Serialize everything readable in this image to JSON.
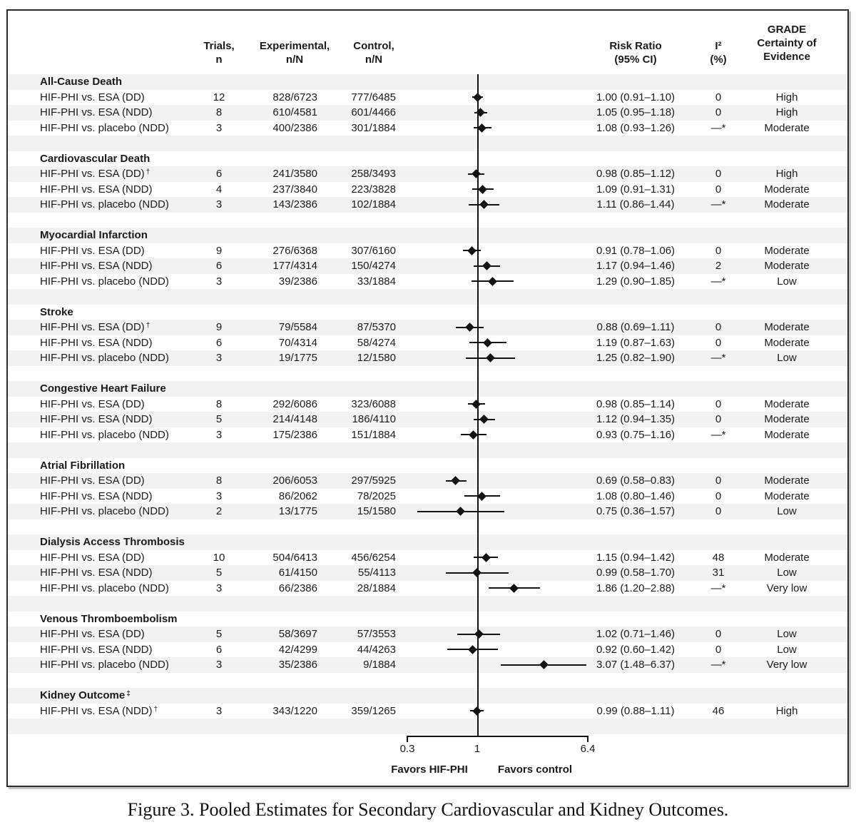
{
  "colors": {
    "stripe": "#f2f2f2",
    "ink": "#1a1a1a",
    "marker": "#121212"
  },
  "columns": {
    "trials_l1": "Trials,",
    "trials_l2": "n",
    "exp_l1": "Experimental,",
    "exp_l2": "n/N",
    "ctrl_l1": "Control,",
    "ctrl_l2": "n/N",
    "rr_l1": "Risk Ratio",
    "rr_l2": "(95% CI)",
    "i2_l1": "I²",
    "i2_l2": "(%)",
    "grade_l1": "GRADE",
    "grade_l2": "Certainty of",
    "grade_l3": "Evidence"
  },
  "axis": {
    "scale": "log",
    "min": 0.3,
    "ref": 1,
    "max": 6.4,
    "ticks": [
      "0.3",
      "1",
      "6.4"
    ],
    "favors_left": "Favors HIF-PHI",
    "favors_right": "Favors control"
  },
  "caption": "Figure 3. Pooled Estimates for Secondary Cardiovascular and Kidney Outcomes.",
  "sections": [
    {
      "title": "All-Cause Death",
      "sup": "",
      "rows": [
        {
          "label": "HIF-PHI vs. ESA (DD)",
          "sup": "",
          "trials": "12",
          "exp": "828/6723",
          "ctrl": "777/6485",
          "rr": "1.00 (0.91–1.10)",
          "est": 1.0,
          "lo": 0.91,
          "hi": 1.1,
          "i2": "0",
          "grade": "High"
        },
        {
          "label": "HIF-PHI vs. ESA (NDD)",
          "sup": "",
          "trials": "8",
          "exp": "610/4581",
          "ctrl": "601/4466",
          "rr": "1.05 (0.95–1.18)",
          "est": 1.05,
          "lo": 0.95,
          "hi": 1.18,
          "i2": "0",
          "grade": "High"
        },
        {
          "label": "HIF-PHI vs. placebo (NDD)",
          "sup": "",
          "trials": "3",
          "exp": "400/2386",
          "ctrl": "301/1884",
          "rr": "1.08 (0.93–1.26)",
          "est": 1.08,
          "lo": 0.93,
          "hi": 1.26,
          "i2": "—*",
          "grade": "Moderate"
        }
      ]
    },
    {
      "title": "Cardiovascular Death",
      "sup": "",
      "rows": [
        {
          "label": "HIF-PHI vs. ESA (DD)",
          "sup": "†",
          "trials": "6",
          "exp": "241/3580",
          "ctrl": "258/3493",
          "rr": "0.98 (0.85–1.12)",
          "est": 0.98,
          "lo": 0.85,
          "hi": 1.12,
          "i2": "0",
          "grade": "High"
        },
        {
          "label": "HIF-PHI vs. ESA (NDD)",
          "sup": "",
          "trials": "4",
          "exp": "237/3840",
          "ctrl": "223/3828",
          "rr": "1.09 (0.91–1.31)",
          "est": 1.09,
          "lo": 0.91,
          "hi": 1.31,
          "i2": "0",
          "grade": "Moderate"
        },
        {
          "label": "HIF-PHI vs. placebo (NDD)",
          "sup": "",
          "trials": "3",
          "exp": "143/2386",
          "ctrl": "102/1884",
          "rr": "1.11 (0.86–1.44)",
          "est": 1.11,
          "lo": 0.86,
          "hi": 1.44,
          "i2": "—*",
          "grade": "Moderate"
        }
      ]
    },
    {
      "title": "Myocardial Infarction",
      "sup": "",
      "rows": [
        {
          "label": "HIF-PHI vs. ESA (DD)",
          "sup": "",
          "trials": "9",
          "exp": "276/6368",
          "ctrl": "307/6160",
          "rr": "0.91 (0.78–1.06)",
          "est": 0.91,
          "lo": 0.78,
          "hi": 1.06,
          "i2": "0",
          "grade": "Moderate"
        },
        {
          "label": "HIF-PHI vs. ESA (NDD)",
          "sup": "",
          "trials": "6",
          "exp": "177/4314",
          "ctrl": "150/4274",
          "rr": "1.17 (0.94–1.46)",
          "est": 1.17,
          "lo": 0.94,
          "hi": 1.46,
          "i2": "2",
          "grade": "Moderate"
        },
        {
          "label": "HIF-PHI vs. placebo (NDD)",
          "sup": "",
          "trials": "3",
          "exp": "39/2386",
          "ctrl": "33/1884",
          "rr": "1.29 (0.90–1.85)",
          "est": 1.29,
          "lo": 0.9,
          "hi": 1.85,
          "i2": "—*",
          "grade": "Low"
        }
      ]
    },
    {
      "title": "Stroke",
      "sup": "",
      "rows": [
        {
          "label": "HIF-PHI vs. ESA (DD)",
          "sup": "†",
          "trials": "9",
          "exp": "79/5584",
          "ctrl": "87/5370",
          "rr": "0.88 (0.69–1.11)",
          "est": 0.88,
          "lo": 0.69,
          "hi": 1.11,
          "i2": "0",
          "grade": "Moderate"
        },
        {
          "label": "HIF-PHI vs. ESA (NDD)",
          "sup": "",
          "trials": "6",
          "exp": "70/4314",
          "ctrl": "58/4274",
          "rr": "1.19 (0.87–1.63)",
          "est": 1.19,
          "lo": 0.87,
          "hi": 1.63,
          "i2": "0",
          "grade": "Moderate"
        },
        {
          "label": "HIF-PHI vs. placebo (NDD)",
          "sup": "",
          "trials": "3",
          "exp": "19/1775",
          "ctrl": "12/1580",
          "rr": "1.25 (0.82–1.90)",
          "est": 1.25,
          "lo": 0.82,
          "hi": 1.9,
          "i2": "—*",
          "grade": "Low"
        }
      ]
    },
    {
      "title": "Congestive Heart Failure",
      "sup": "",
      "rows": [
        {
          "label": "HIF-PHI vs. ESA (DD)",
          "sup": "",
          "trials": "8",
          "exp": "292/6086",
          "ctrl": "323/6088",
          "rr": "0.98 (0.85–1.14)",
          "est": 0.98,
          "lo": 0.85,
          "hi": 1.14,
          "i2": "0",
          "grade": "Moderate"
        },
        {
          "label": "HIF-PHI vs. ESA (NDD)",
          "sup": "",
          "trials": "5",
          "exp": "214/4148",
          "ctrl": "186/4110",
          "rr": "1.12 (0.94–1.35)",
          "est": 1.12,
          "lo": 0.94,
          "hi": 1.35,
          "i2": "0",
          "grade": "Moderate"
        },
        {
          "label": "HIF-PHI vs. placebo (NDD)",
          "sup": "",
          "trials": "3",
          "exp": "175/2386",
          "ctrl": "151/1884",
          "rr": "0.93 (0.75–1.16)",
          "est": 0.93,
          "lo": 0.75,
          "hi": 1.16,
          "i2": "—*",
          "grade": "Moderate"
        }
      ]
    },
    {
      "title": "Atrial Fibrillation",
      "sup": "",
      "rows": [
        {
          "label": "HIF-PHI vs. ESA (DD)",
          "sup": "",
          "trials": "8",
          "exp": "206/6053",
          "ctrl": "297/5925",
          "rr": "0.69 (0.58–0.83)",
          "est": 0.69,
          "lo": 0.58,
          "hi": 0.83,
          "i2": "0",
          "grade": "Moderate"
        },
        {
          "label": "HIF-PHI vs. ESA (NDD)",
          "sup": "",
          "trials": "3",
          "exp": "86/2062",
          "ctrl": "78/2025",
          "rr": "1.08 (0.80–1.46)",
          "est": 1.08,
          "lo": 0.8,
          "hi": 1.46,
          "i2": "0",
          "grade": "Moderate"
        },
        {
          "label": "HIF-PHI vs. placebo (NDD)",
          "sup": "",
          "trials": "2",
          "exp": "13/1775",
          "ctrl": "15/1580",
          "rr": "0.75 (0.36–1.57)",
          "est": 0.75,
          "lo": 0.36,
          "hi": 1.57,
          "i2": "0",
          "grade": "Low"
        }
      ]
    },
    {
      "title": "Dialysis Access Thrombosis",
      "sup": "",
      "rows": [
        {
          "label": "HIF-PHI vs. ESA (DD)",
          "sup": "",
          "trials": "10",
          "exp": "504/6413",
          "ctrl": "456/6254",
          "rr": "1.15 (0.94–1.42)",
          "est": 1.15,
          "lo": 0.94,
          "hi": 1.42,
          "i2": "48",
          "grade": "Moderate"
        },
        {
          "label": "HIF-PHI vs. ESA (NDD)",
          "sup": "",
          "trials": "5",
          "exp": "61/4150",
          "ctrl": "55/4113",
          "rr": "0.99 (0.58–1.70)",
          "est": 0.99,
          "lo": 0.58,
          "hi": 1.7,
          "i2": "31",
          "grade": "Low"
        },
        {
          "label": "HIF-PHI vs. placebo (NDD)",
          "sup": "",
          "trials": "3",
          "exp": "66/2386",
          "ctrl": "28/1884",
          "rr": "1.86 (1.20–2.88)",
          "est": 1.86,
          "lo": 1.2,
          "hi": 2.88,
          "i2": "—*",
          "grade": "Very low"
        }
      ]
    },
    {
      "title": "Venous Thromboembolism",
      "sup": "",
      "rows": [
        {
          "label": "HIF-PHI vs. ESA (DD)",
          "sup": "",
          "trials": "5",
          "exp": "58/3697",
          "ctrl": "57/3553",
          "rr": "1.02 (0.71–1.46)",
          "est": 1.02,
          "lo": 0.71,
          "hi": 1.46,
          "i2": "0",
          "grade": "Low"
        },
        {
          "label": "HIF-PHI vs. ESA (NDD)",
          "sup": "",
          "trials": "6",
          "exp": "42/4299",
          "ctrl": "44/4263",
          "rr": "0.92 (0.60–1.42)",
          "est": 0.92,
          "lo": 0.6,
          "hi": 1.42,
          "i2": "0",
          "grade": "Low"
        },
        {
          "label": "HIF-PHI vs. placebo (NDD)",
          "sup": "",
          "trials": "3",
          "exp": "35/2386",
          "ctrl": "9/1884",
          "rr": "3.07 (1.48–6.37)",
          "est": 3.07,
          "lo": 1.48,
          "hi": 6.37,
          "i2": "—*",
          "grade": "Very low"
        }
      ]
    },
    {
      "title": "Kidney Outcome",
      "sup": "‡",
      "rows": [
        {
          "label": "HIF-PHI vs. ESA (NDD)",
          "sup": "†",
          "trials": "3",
          "exp": "343/1220",
          "ctrl": "359/1265",
          "rr": "0.99 (0.88–1.11)",
          "est": 0.99,
          "lo": 0.88,
          "hi": 1.11,
          "i2": "46",
          "grade": "High"
        }
      ]
    }
  ],
  "chart_data": {
    "type": "scatter",
    "subtype": "forest-plot",
    "title": "Figure 3. Pooled Estimates for Secondary Cardiovascular and Kidney Outcomes.",
    "x_scale": "log",
    "x_range": [
      0.3,
      6.4
    ],
    "x_ticks": [
      0.3,
      1,
      6.4
    ],
    "reference_line": 1,
    "xlabel_left": "Favors HIF-PHI",
    "xlabel_right": "Favors control",
    "entries": [
      {
        "outcome": "All-Cause Death",
        "comparison": "HIF-PHI vs. ESA (DD)",
        "est": 1.0,
        "ci": [
          0.91,
          1.1
        ]
      },
      {
        "outcome": "All-Cause Death",
        "comparison": "HIF-PHI vs. ESA (NDD)",
        "est": 1.05,
        "ci": [
          0.95,
          1.18
        ]
      },
      {
        "outcome": "All-Cause Death",
        "comparison": "HIF-PHI vs. placebo (NDD)",
        "est": 1.08,
        "ci": [
          0.93,
          1.26
        ]
      },
      {
        "outcome": "Cardiovascular Death",
        "comparison": "HIF-PHI vs. ESA (DD)",
        "est": 0.98,
        "ci": [
          0.85,
          1.12
        ]
      },
      {
        "outcome": "Cardiovascular Death",
        "comparison": "HIF-PHI vs. ESA (NDD)",
        "est": 1.09,
        "ci": [
          0.91,
          1.31
        ]
      },
      {
        "outcome": "Cardiovascular Death",
        "comparison": "HIF-PHI vs. placebo (NDD)",
        "est": 1.11,
        "ci": [
          0.86,
          1.44
        ]
      },
      {
        "outcome": "Myocardial Infarction",
        "comparison": "HIF-PHI vs. ESA (DD)",
        "est": 0.91,
        "ci": [
          0.78,
          1.06
        ]
      },
      {
        "outcome": "Myocardial Infarction",
        "comparison": "HIF-PHI vs. ESA (NDD)",
        "est": 1.17,
        "ci": [
          0.94,
          1.46
        ]
      },
      {
        "outcome": "Myocardial Infarction",
        "comparison": "HIF-PHI vs. placebo (NDD)",
        "est": 1.29,
        "ci": [
          0.9,
          1.85
        ]
      },
      {
        "outcome": "Stroke",
        "comparison": "HIF-PHI vs. ESA (DD)",
        "est": 0.88,
        "ci": [
          0.69,
          1.11
        ]
      },
      {
        "outcome": "Stroke",
        "comparison": "HIF-PHI vs. ESA (NDD)",
        "est": 1.19,
        "ci": [
          0.87,
          1.63
        ]
      },
      {
        "outcome": "Stroke",
        "comparison": "HIF-PHI vs. placebo (NDD)",
        "est": 1.25,
        "ci": [
          0.82,
          1.9
        ]
      },
      {
        "outcome": "Congestive Heart Failure",
        "comparison": "HIF-PHI vs. ESA (DD)",
        "est": 0.98,
        "ci": [
          0.85,
          1.14
        ]
      },
      {
        "outcome": "Congestive Heart Failure",
        "comparison": "HIF-PHI vs. ESA (NDD)",
        "est": 1.12,
        "ci": [
          0.94,
          1.35
        ]
      },
      {
        "outcome": "Congestive Heart Failure",
        "comparison": "HIF-PHI vs. placebo (NDD)",
        "est": 0.93,
        "ci": [
          0.75,
          1.16
        ]
      },
      {
        "outcome": "Atrial Fibrillation",
        "comparison": "HIF-PHI vs. ESA (DD)",
        "est": 0.69,
        "ci": [
          0.58,
          0.83
        ]
      },
      {
        "outcome": "Atrial Fibrillation",
        "comparison": "HIF-PHI vs. ESA (NDD)",
        "est": 1.08,
        "ci": [
          0.8,
          1.46
        ]
      },
      {
        "outcome": "Atrial Fibrillation",
        "comparison": "HIF-PHI vs. placebo (NDD)",
        "est": 0.75,
        "ci": [
          0.36,
          1.57
        ]
      },
      {
        "outcome": "Dialysis Access Thrombosis",
        "comparison": "HIF-PHI vs. ESA (DD)",
        "est": 1.15,
        "ci": [
          0.94,
          1.42
        ]
      },
      {
        "outcome": "Dialysis Access Thrombosis",
        "comparison": "HIF-PHI vs. ESA (NDD)",
        "est": 0.99,
        "ci": [
          0.58,
          1.7
        ]
      },
      {
        "outcome": "Dialysis Access Thrombosis",
        "comparison": "HIF-PHI vs. placebo (NDD)",
        "est": 1.86,
        "ci": [
          1.2,
          2.88
        ]
      },
      {
        "outcome": "Venous Thromboembolism",
        "comparison": "HIF-PHI vs. ESA (DD)",
        "est": 1.02,
        "ci": [
          0.71,
          1.46
        ]
      },
      {
        "outcome": "Venous Thromboembolism",
        "comparison": "HIF-PHI vs. ESA (NDD)",
        "est": 0.92,
        "ci": [
          0.6,
          1.42
        ]
      },
      {
        "outcome": "Venous Thromboembolism",
        "comparison": "HIF-PHI vs. placebo (NDD)",
        "est": 3.07,
        "ci": [
          1.48,
          6.37
        ]
      },
      {
        "outcome": "Kidney Outcome",
        "comparison": "HIF-PHI vs. ESA (NDD)",
        "est": 0.99,
        "ci": [
          0.88,
          1.11
        ]
      }
    ]
  }
}
